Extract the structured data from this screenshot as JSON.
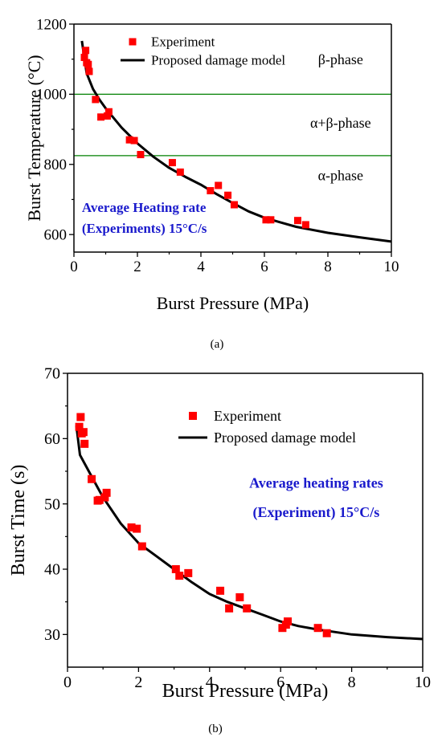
{
  "chart_data": [
    {
      "type": "scatter",
      "subcaption": "(a)",
      "title": "",
      "xlabel": "Burst Pressure (MPa)",
      "ylabel": "Burst Temperature (°C)",
      "xlim": [
        0,
        10
      ],
      "ylim": [
        550,
        1200
      ],
      "xticks": [
        0,
        2,
        4,
        6,
        8,
        10
      ],
      "yticks": [
        600,
        800,
        1000,
        1200
      ],
      "grid": false,
      "legend_position": "top-left",
      "colors": {
        "experiment": "#ff0000",
        "model": "#000000",
        "phase_line": "#008000",
        "annotation": "#1a1acc"
      },
      "series": [
        {
          "name": "Experiment",
          "kind": "scatter",
          "x": [
            0.33,
            0.37,
            0.4,
            0.45,
            0.48,
            0.68,
            0.85,
            1.05,
            1.1,
            1.75,
            1.9,
            2.1,
            3.1,
            3.35,
            4.3,
            4.55,
            4.85,
            5.05,
            6.05,
            6.2,
            7.05,
            7.3
          ],
          "y": [
            1105,
            1125,
            1090,
            1085,
            1065,
            985,
            935,
            938,
            950,
            870,
            868,
            828,
            805,
            778,
            725,
            740,
            712,
            685,
            642,
            642,
            640,
            628
          ]
        },
        {
          "name": "Proposed damage model",
          "kind": "line",
          "x": [
            0.25,
            0.4,
            0.6,
            0.8,
            1.0,
            1.5,
            2.0,
            2.5,
            3.0,
            3.5,
            4.0,
            4.5,
            5.0,
            5.5,
            6.0,
            6.5,
            7.0,
            8.0,
            9.0,
            10.0
          ],
          "y": [
            1152,
            1060,
            1015,
            985,
            960,
            905,
            860,
            822,
            790,
            765,
            742,
            715,
            690,
            666,
            648,
            635,
            622,
            605,
            592,
            580
          ]
        }
      ],
      "reference_lines": [
        {
          "axis": "y",
          "value": 1000
        },
        {
          "axis": "y",
          "value": 825
        }
      ],
      "annotations": [
        {
          "text": "β-phase",
          "x": 8.4,
          "y": 1085
        },
        {
          "text": "α+β-phase",
          "x": 8.4,
          "y": 905
        },
        {
          "text": "α-phase",
          "x": 8.4,
          "y": 755
        },
        {
          "text": "Average Heating rate",
          "x": 0.25,
          "y": 665
        },
        {
          "text": "(Experiments) 15°C/s",
          "x": 0.25,
          "y": 605
        }
      ]
    },
    {
      "type": "scatter",
      "subcaption": "(b)",
      "title": "",
      "xlabel": "Burst Pressure (MPa)",
      "ylabel": "Burst Time (s)",
      "xlim": [
        0,
        10
      ],
      "ylim": [
        25,
        70
      ],
      "xticks": [
        0,
        2,
        4,
        6,
        8,
        10
      ],
      "yticks": [
        30,
        40,
        50,
        60,
        70
      ],
      "grid": false,
      "legend_position": "top-center",
      "colors": {
        "experiment": "#ff0000",
        "model": "#000000",
        "annotation": "#1a1acc"
      },
      "series": [
        {
          "name": "Experiment",
          "kind": "scatter",
          "x": [
            0.33,
            0.37,
            0.4,
            0.45,
            0.48,
            0.68,
            0.85,
            0.9,
            1.05,
            1.1,
            1.8,
            1.95,
            2.1,
            3.05,
            3.15,
            3.4,
            4.3,
            4.55,
            4.85,
            5.05,
            6.05,
            6.15,
            6.2,
            7.05,
            7.3
          ],
          "y": [
            61.8,
            63.3,
            60.8,
            61.0,
            59.2,
            53.8,
            50.5,
            50.6,
            51.0,
            51.7,
            46.4,
            46.2,
            43.5,
            40.0,
            39.0,
            39.4,
            36.7,
            34.0,
            35.7,
            34.0,
            31.0,
            31.5,
            32.0,
            31.0,
            30.2
          ]
        },
        {
          "name": "Proposed damage model",
          "kind": "line",
          "x": [
            0.25,
            0.35,
            0.5,
            0.7,
            1.0,
            1.5,
            2.0,
            2.5,
            3.0,
            3.5,
            4.0,
            4.5,
            5.0,
            5.5,
            6.0,
            6.5,
            7.0,
            8.0,
            9.0,
            10.0
          ],
          "y": [
            62.0,
            57.5,
            56.0,
            54.0,
            51.0,
            47.0,
            44.0,
            42.0,
            40.0,
            38.0,
            36.2,
            35.0,
            34.0,
            33.0,
            32.0,
            31.3,
            30.8,
            30.0,
            29.6,
            29.3
          ]
        }
      ],
      "annotations": [
        {
          "text": "Average heating rates",
          "x": 7.0,
          "y": 52.5
        },
        {
          "text": "(Experiment) 15°C/s",
          "x": 7.0,
          "y": 48.0
        }
      ]
    }
  ]
}
